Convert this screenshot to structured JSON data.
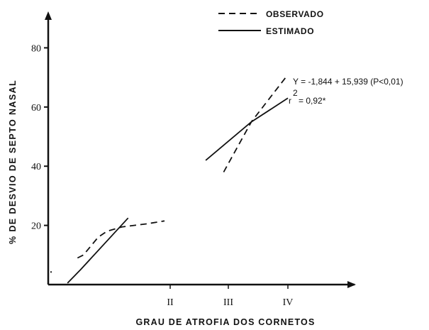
{
  "chart_data": {
    "type": "line",
    "title": "",
    "xlabel": "GRAU DE ATROFIA DOS CORNETOS",
    "ylabel": "% DE DESVIO DE SEPTO NASAL",
    "x_categories": [
      "II",
      "III",
      "IV"
    ],
    "y_ticks": [
      20,
      40,
      60,
      80
    ],
    "ylim": [
      0,
      95
    ],
    "legend": [
      {
        "name": "OBSERVADO",
        "style": "dashed"
      },
      {
        "name": "ESTIMADO",
        "style": "solid"
      }
    ],
    "legend_position": "top-right",
    "series": [
      {
        "name": "OBSERVADO",
        "style": "dashed",
        "segments": [
          [
            [
              1.0,
              4.0
            ],
            [
              1.0,
              4.5
            ]
          ],
          [
            [
              1.45,
              9.0
            ],
            [
              1.55,
              10.0
            ],
            [
              1.8,
              16.0
            ],
            [
              1.95,
              18.0
            ],
            [
              2.1,
              19.5
            ],
            [
              2.3,
              20.5
            ],
            [
              2.45,
              21.5
            ]
          ],
          [
            [
              3.12,
              38.0
            ],
            [
              3.5,
              55.0
            ],
            [
              3.97,
              70.0
            ]
          ]
        ]
      },
      {
        "name": "ESTIMADO",
        "style": "solid",
        "segments": [
          [
            [
              1.28,
              0.5
            ],
            [
              1.5,
              5.0
            ],
            [
              2.15,
              22.5
            ]
          ],
          [
            [
              2.9,
              42.0
            ],
            [
              3.5,
              55.0
            ],
            [
              4.0,
              63.0
            ]
          ]
        ]
      }
    ],
    "annotations": {
      "equation": "Y = -1,844 + 15,939 (P<0,01)",
      "r2_prefix": "r",
      "r2_superscript": "2",
      "r2_value": "= 0,92*"
    }
  }
}
